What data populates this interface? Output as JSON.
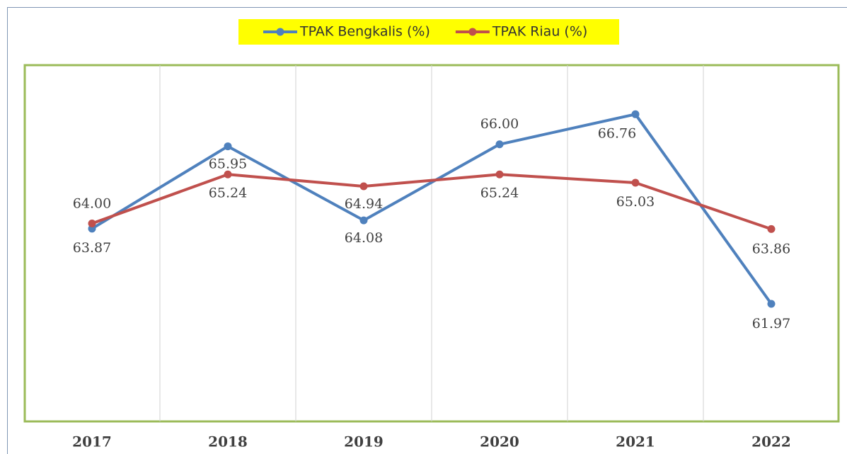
{
  "chart_data": {
    "type": "line",
    "categories": [
      "2017",
      "2018",
      "2019",
      "2020",
      "2021",
      "2022"
    ],
    "series": [
      {
        "name": "TPAK Bengkalis (%)",
        "color": "#4f81bd",
        "values": [
          63.87,
          65.95,
          64.08,
          66.0,
          66.76,
          61.97
        ],
        "value_labels": [
          "63.87",
          "65.95",
          "64.08",
          "66.00",
          "66.76",
          "61.97"
        ]
      },
      {
        "name": "TPAK Riau (%)",
        "color": "#c0504d",
        "values": [
          64.0,
          65.24,
          64.94,
          65.24,
          65.03,
          63.86
        ],
        "value_labels": [
          "64.00",
          "65.24",
          "64.94",
          "65.24",
          "65.03",
          "63.86"
        ]
      }
    ],
    "ylim": [
      59,
      68
    ],
    "legend": "top"
  }
}
